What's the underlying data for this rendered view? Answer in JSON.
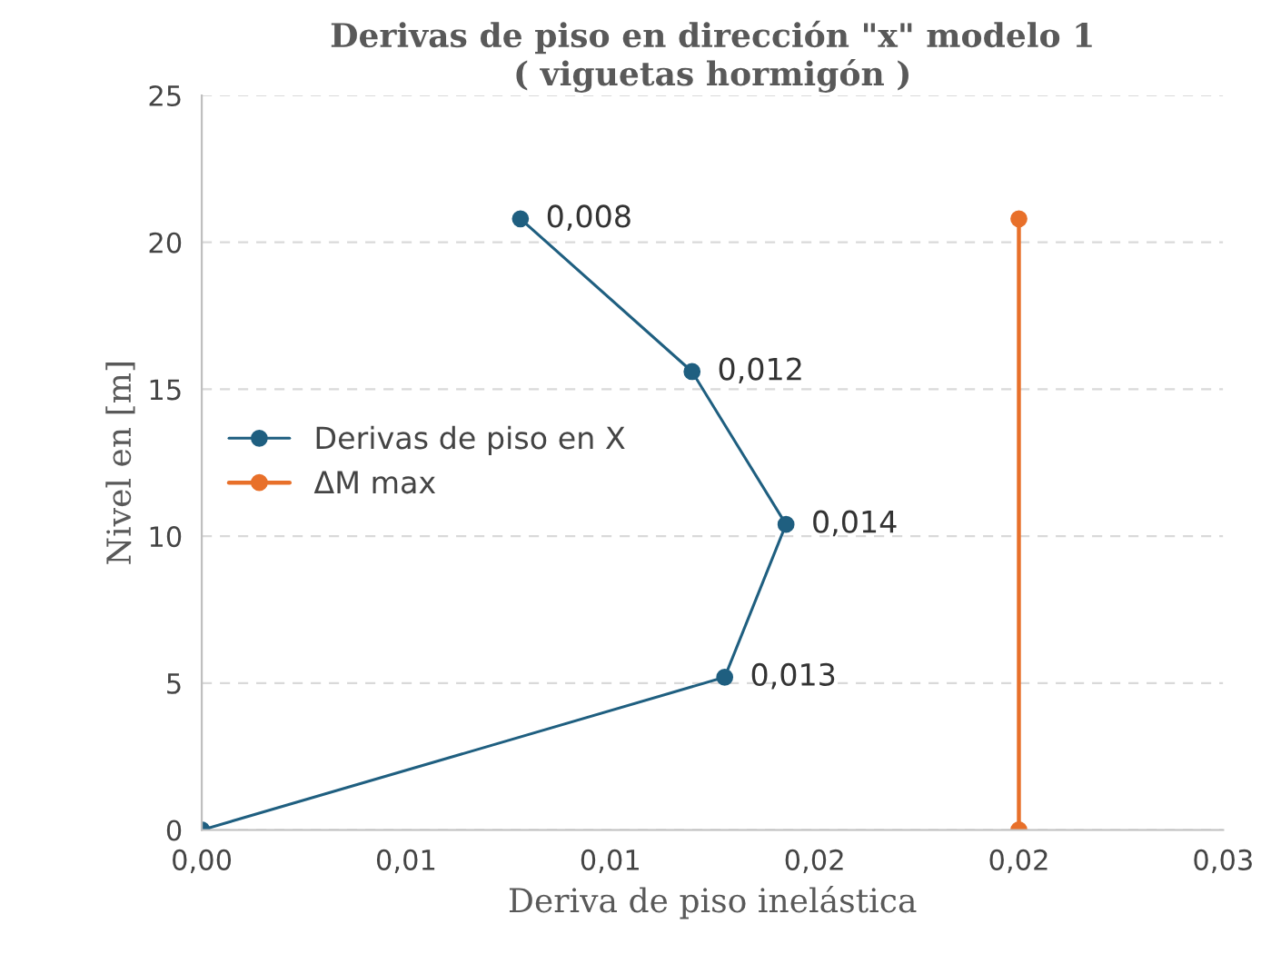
{
  "chart_data": {
    "type": "line",
    "orientation": "horizontal",
    "title": "Derivas de piso en dirección \"x\" modelo 1\n( viguetas hormigón )",
    "xlabel": "Deriva de piso inelástica",
    "ylabel": "Nivel en [m]",
    "series": [
      {
        "name": "Derivas de piso en X",
        "color": "#1f5f80",
        "x": [
          0,
          5.2,
          10.4,
          15.6,
          20.8
        ],
        "values": [
          0,
          0.0128,
          0.0143,
          0.012,
          0.0078
        ],
        "value_labels": [
          null,
          "0,013",
          "0,014",
          "0,012",
          "0,008"
        ]
      },
      {
        "name": "ΔM max",
        "color": "#e8702a",
        "x": [
          0,
          20.8
        ],
        "values": [
          0.02,
          0.02
        ]
      }
    ],
    "xlim": [
      0,
      0.025
    ],
    "xticks": [
      {
        "value": 0,
        "label": "0,00"
      },
      {
        "value": 0.005,
        "label": "0,01"
      },
      {
        "value": 0.01,
        "label": "0,01"
      },
      {
        "value": 0.015,
        "label": "0,02"
      },
      {
        "value": 0.02,
        "label": "0,02"
      },
      {
        "value": 0.025,
        "label": "0,03"
      }
    ],
    "ylim": [
      0,
      25
    ],
    "yticks": [
      0,
      5,
      10,
      15,
      20,
      25
    ],
    "grid": "y",
    "legend": "left",
    "marker": "circle",
    "line_style": "solid"
  }
}
